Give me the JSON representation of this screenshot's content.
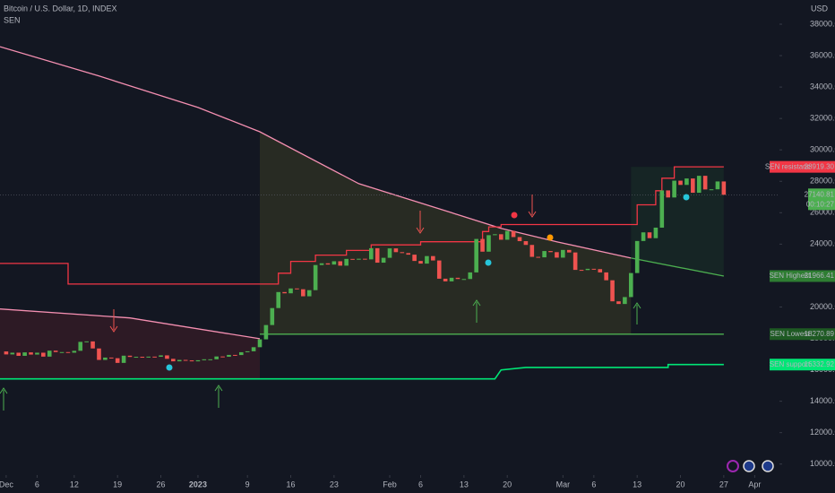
{
  "chart_data": {
    "type": "candlestick",
    "title": "Bitcoin / U.S. Dollar, 1D, INDEX",
    "subtitle": "SEN",
    "y_unit": "USD",
    "up_color": "#4caf50",
    "down_color": "#ef5350",
    "xlim": [
      "2022-11-30",
      "2023-04-05"
    ],
    "ylim": [
      9300,
      39540
    ],
    "xticks": [
      {
        "value": "2022-12-01",
        "label": "Dec"
      },
      {
        "value": "2022-12-06",
        "label": "6"
      },
      {
        "value": "2022-12-12",
        "label": "12"
      },
      {
        "value": "2022-12-19",
        "label": "19"
      },
      {
        "value": "2022-12-26",
        "label": "26"
      },
      {
        "value": "2023-01-01",
        "label": "2023"
      },
      {
        "value": "2023-01-09",
        "label": "9"
      },
      {
        "value": "2023-01-16",
        "label": "16"
      },
      {
        "value": "2023-01-23",
        "label": "23"
      },
      {
        "value": "2023-02-01",
        "label": "Feb"
      },
      {
        "value": "2023-02-06",
        "label": "6"
      },
      {
        "value": "2023-02-13",
        "label": "13"
      },
      {
        "value": "2023-02-20",
        "label": "20"
      },
      {
        "value": "2023-03-01",
        "label": "Mar"
      },
      {
        "value": "2023-03-06",
        "label": "6"
      },
      {
        "value": "2023-03-13",
        "label": "13"
      },
      {
        "value": "2023-03-20",
        "label": "20"
      },
      {
        "value": "2023-03-27",
        "label": "27"
      },
      {
        "value": "2023-04-01",
        "label": "Apr"
      }
    ],
    "yticks": [
      {
        "value": 10000,
        "label": "10000.00"
      },
      {
        "value": 12000,
        "label": "12000.00"
      },
      {
        "value": 14000,
        "label": "14000.00"
      },
      {
        "value": 16000,
        "label": "16000.00"
      },
      {
        "value": 18000,
        "label": "18000.00"
      },
      {
        "value": 20000,
        "label": "20000.00"
      },
      {
        "value": 22000,
        "label": "22000.00"
      },
      {
        "value": 24000,
        "label": "24000.00"
      },
      {
        "value": 26000,
        "label": "26000.00"
      },
      {
        "value": 28000,
        "label": "28000.00"
      },
      {
        "value": 30000,
        "label": "30000.00"
      },
      {
        "value": 32000,
        "label": "32000.00"
      },
      {
        "value": 34000,
        "label": "34000.00"
      },
      {
        "value": 36000,
        "label": "36000.00"
      },
      {
        "value": 38000,
        "label": "38000.00"
      }
    ],
    "x": [
      "2022-12-01",
      "2022-12-02",
      "2022-12-03",
      "2022-12-04",
      "2022-12-05",
      "2022-12-06",
      "2022-12-07",
      "2022-12-08",
      "2022-12-09",
      "2022-12-10",
      "2022-12-11",
      "2022-12-12",
      "2022-12-13",
      "2022-12-14",
      "2022-12-15",
      "2022-12-16",
      "2022-12-17",
      "2022-12-18",
      "2022-12-19",
      "2022-12-20",
      "2022-12-21",
      "2022-12-22",
      "2022-12-23",
      "2022-12-24",
      "2022-12-25",
      "2022-12-26",
      "2022-12-27",
      "2022-12-28",
      "2022-12-29",
      "2022-12-30",
      "2022-12-31",
      "2023-01-01",
      "2023-01-02",
      "2023-01-03",
      "2023-01-04",
      "2023-01-05",
      "2023-01-06",
      "2023-01-07",
      "2023-01-08",
      "2023-01-09",
      "2023-01-10",
      "2023-01-11",
      "2023-01-12",
      "2023-01-13",
      "2023-01-14",
      "2023-01-15",
      "2023-01-16",
      "2023-01-17",
      "2023-01-18",
      "2023-01-19",
      "2023-01-20",
      "2023-01-21",
      "2023-01-22",
      "2023-01-23",
      "2023-01-24",
      "2023-01-25",
      "2023-01-26",
      "2023-01-27",
      "2023-01-28",
      "2023-01-29",
      "2023-01-30",
      "2023-01-31",
      "2023-02-01",
      "2023-02-02",
      "2023-02-03",
      "2023-02-04",
      "2023-02-05",
      "2023-02-06",
      "2023-02-07",
      "2023-02-08",
      "2023-02-09",
      "2023-02-10",
      "2023-02-11",
      "2023-02-12",
      "2023-02-13",
      "2023-02-14",
      "2023-02-15",
      "2023-02-16",
      "2023-02-17",
      "2023-02-18",
      "2023-02-19",
      "2023-02-20",
      "2023-02-21",
      "2023-02-22",
      "2023-02-23",
      "2023-02-24",
      "2023-02-25",
      "2023-02-26",
      "2023-02-27",
      "2023-02-28",
      "2023-03-01",
      "2023-03-02",
      "2023-03-03",
      "2023-03-04",
      "2023-03-05",
      "2023-03-06",
      "2023-03-07",
      "2023-03-08",
      "2023-03-09",
      "2023-03-10",
      "2023-03-11",
      "2023-03-12",
      "2023-03-13",
      "2023-03-14",
      "2023-03-15",
      "2023-03-16",
      "2023-03-17",
      "2023-03-18",
      "2023-03-19",
      "2023-03-20",
      "2023-03-21",
      "2023-03-22",
      "2023-03-23",
      "2023-03-24",
      "2023-03-25",
      "2023-03-26",
      "2023-03-27"
    ],
    "open": [
      17170,
      16980,
      17090,
      16890,
      17110,
      16970,
      17090,
      16840,
      17220,
      17130,
      17130,
      17090,
      17210,
      17780,
      17810,
      17360,
      16630,
      16780,
      16740,
      16440,
      16900,
      16820,
      16830,
      16780,
      16840,
      16830,
      16920,
      16700,
      16540,
      16630,
      16600,
      16540,
      16610,
      16670,
      16670,
      16850,
      16830,
      16950,
      16940,
      17120,
      17180,
      17440,
      17940,
      18850,
      19930,
      20950,
      20870,
      21180,
      21130,
      20680,
      21070,
      22670,
      22780,
      22700,
      22910,
      22630,
      23060,
      23010,
      23070,
      23030,
      23740,
      22820,
      23130,
      23730,
      23490,
      23430,
      23330,
      22930,
      22760,
      23240,
      22960,
      21800,
      21630,
      21860,
      21780,
      21780,
      22200,
      24330,
      23520,
      24570,
      24630,
      24280,
      24840,
      24450,
      24190,
      23950,
      23190,
      23160,
      23560,
      23490,
      23140,
      23630,
      23470,
      22360,
      22350,
      22430,
      22410,
      22200,
      21700,
      20360,
      20190,
      20630,
      22160,
      24200,
      24750,
      24380,
      25050,
      27420,
      26970,
      28040,
      27770,
      28180,
      27270,
      28350,
      27480,
      27490,
      27990
    ],
    "close": [
      16980,
      17090,
      16890,
      17110,
      16970,
      17090,
      16840,
      17220,
      17130,
      17130,
      17090,
      17210,
      17780,
      17810,
      17360,
      16630,
      16780,
      16740,
      16440,
      16900,
      16820,
      16830,
      16780,
      16840,
      16830,
      16920,
      16700,
      16540,
      16630,
      16600,
      16540,
      16610,
      16670,
      16670,
      16850,
      16830,
      16950,
      16940,
      17120,
      17180,
      17440,
      17940,
      18850,
      19930,
      20950,
      20870,
      21180,
      21130,
      20680,
      21070,
      22670,
      22780,
      22700,
      22910,
      22630,
      23060,
      23010,
      23070,
      23030,
      23740,
      22820,
      23130,
      23730,
      23490,
      23430,
      23330,
      22930,
      22760,
      23240,
      22960,
      21800,
      21630,
      21860,
      21780,
      21780,
      22200,
      24330,
      23520,
      24570,
      24630,
      24280,
      24840,
      24450,
      24190,
      23950,
      23190,
      23160,
      23560,
      23490,
      23140,
      23630,
      23470,
      22360,
      22350,
      22430,
      22410,
      22200,
      21700,
      20360,
      20190,
      20630,
      22160,
      24200,
      24750,
      24380,
      25050,
      27420,
      26970,
      28040,
      27770,
      28180,
      27270,
      28350,
      27480,
      27490,
      27990,
      27140.81
    ],
    "lines": {
      "ma": {
        "color": "#f48fb1",
        "x": [
          "2022-11-30",
          "2022-12-16",
          "2023-01-01",
          "2023-01-11",
          "2023-01-27",
          "2023-02-11",
          "2023-02-19",
          "2023-02-28",
          "2023-03-12"
        ],
        "values": [
          36570,
          34700,
          32700,
          31150,
          27850,
          26000,
          25000,
          24150,
          23116
        ]
      },
      "ma_lower": {
        "color": "#f48fb1",
        "x": [
          "2022-11-30",
          "2022-12-21",
          "2023-01-11"
        ],
        "values": [
          19870,
          19300,
          17980
        ]
      },
      "highest": {
        "color": "#4caf50",
        "x": [
          "2023-03-12",
          "2023-03-27"
        ],
        "values": [
          23116,
          21966.41
        ]
      },
      "lowest": {
        "color": "#4caf50",
        "x": [
          "2023-01-11",
          "2023-03-27"
        ],
        "values": [
          18270.89,
          18270.89
        ]
      },
      "resistance": {
        "color": "#f23645",
        "x": [
          "2022-11-30",
          "2022-12-11",
          "2022-12-11",
          "2023-01-14",
          "2023-01-14",
          "2023-01-16",
          "2023-01-16",
          "2023-01-20",
          "2023-01-20",
          "2023-01-25",
          "2023-01-25",
          "2023-01-29",
          "2023-01-29",
          "2023-02-06",
          "2023-02-06",
          "2023-02-16",
          "2023-02-16",
          "2023-02-17",
          "2023-02-17",
          "2023-02-19",
          "2023-02-19",
          "2023-03-13",
          "2023-03-13",
          "2023-03-16",
          "2023-03-16",
          "2023-03-17",
          "2023-03-17",
          "2023-03-19",
          "2023-03-19",
          "2023-03-27"
        ],
        "values": [
          22770,
          22770,
          21460,
          21460,
          22150,
          22150,
          22900,
          22900,
          23300,
          23300,
          23600,
          23600,
          23950,
          23950,
          24150,
          24150,
          24800,
          24800,
          25100,
          25100,
          25250,
          25250,
          26500,
          26500,
          27400,
          27400,
          28200,
          28200,
          28919.3,
          28919.3
        ]
      },
      "support": {
        "color": "#00e676",
        "x": [
          "2022-11-30",
          "2023-02-18",
          "2023-02-19",
          "2023-02-23",
          "2023-03-18",
          "2023-03-18",
          "2023-03-27"
        ],
        "values": [
          15420,
          15420,
          15990,
          16150,
          16150,
          16332.92,
          16332.92
        ]
      }
    },
    "price_labels": [
      {
        "name": "SEN resistance",
        "value": 28919.3,
        "value_label": "28919.30",
        "color": "#f23645",
        "text_color": "#ffffff"
      },
      {
        "name": "SEN Highest",
        "value": 21966.41,
        "color": "#2e7d32",
        "text_color": "#ffffff"
      },
      {
        "name": "SEN Lowest",
        "value": 18270.89,
        "color": "#1e5a23",
        "text_color": "#ffffff"
      },
      {
        "name": "SEN support",
        "value": 16332.92,
        "color": "#00e676",
        "text_color": "#000000"
      }
    ],
    "last_price": {
      "value": 27140.81,
      "countdown": "00:10:27",
      "color": "#4caf50"
    }
  }
}
